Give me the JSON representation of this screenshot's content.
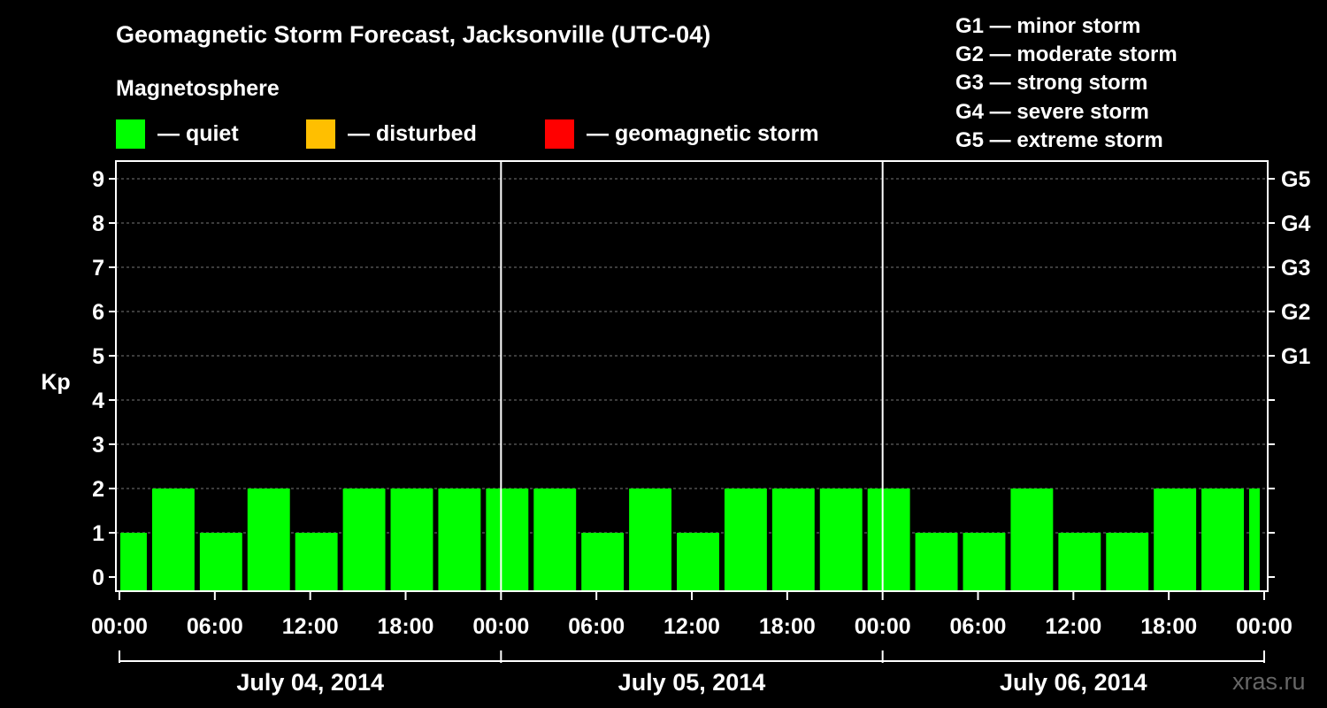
{
  "title": "Geomagnetic Storm Forecast, Jacksonville (UTC-04)",
  "subtitle": "Magnetosphere",
  "legend": [
    {
      "label": "— quiet",
      "color": "#00ff00"
    },
    {
      "label": "— disturbed",
      "color": "#ffbf00"
    },
    {
      "label": "— geomagnetic storm",
      "color": "#ff0000"
    }
  ],
  "g_legend": [
    "G1 — minor storm",
    "G2 — moderate storm",
    "G3 — strong storm",
    "G4 — severe storm",
    "G5 — extreme storm"
  ],
  "watermark": "xras.ru",
  "chart_data": {
    "type": "bar",
    "ylabel": "Kp",
    "ylim": [
      0,
      9
    ],
    "yticks": [
      "0",
      "1",
      "2",
      "3",
      "4",
      "5",
      "6",
      "7",
      "8",
      "9"
    ],
    "right_ticks": [
      {
        "kp": 5,
        "label": "G1"
      },
      {
        "kp": 6,
        "label": "G2"
      },
      {
        "kp": 7,
        "label": "G3"
      },
      {
        "kp": 8,
        "label": "G4"
      },
      {
        "kp": 9,
        "label": "G5"
      }
    ],
    "grid": true,
    "xticks": [
      "00:00",
      "06:00",
      "12:00",
      "18:00",
      "00:00",
      "06:00",
      "12:00",
      "18:00",
      "00:00",
      "06:00",
      "12:00",
      "18:00",
      "00:00"
    ],
    "days": [
      "July 04, 2014",
      "July 05, 2014",
      "July 06, 2014"
    ],
    "bar_color": "#00ff00",
    "bars": [
      {
        "start_hour": 0,
        "end_hour": 2,
        "kp": 1
      },
      {
        "start_hour": 2,
        "end_hour": 5,
        "kp": 2
      },
      {
        "start_hour": 5,
        "end_hour": 8,
        "kp": 1
      },
      {
        "start_hour": 8,
        "end_hour": 11,
        "kp": 2
      },
      {
        "start_hour": 11,
        "end_hour": 14,
        "kp": 1
      },
      {
        "start_hour": 14,
        "end_hour": 17,
        "kp": 2
      },
      {
        "start_hour": 17,
        "end_hour": 20,
        "kp": 2
      },
      {
        "start_hour": 20,
        "end_hour": 23,
        "kp": 2
      },
      {
        "start_hour": 23,
        "end_hour": 26,
        "kp": 2
      },
      {
        "start_hour": 26,
        "end_hour": 29,
        "kp": 2
      },
      {
        "start_hour": 29,
        "end_hour": 32,
        "kp": 1
      },
      {
        "start_hour": 32,
        "end_hour": 35,
        "kp": 2
      },
      {
        "start_hour": 35,
        "end_hour": 38,
        "kp": 1
      },
      {
        "start_hour": 38,
        "end_hour": 41,
        "kp": 2
      },
      {
        "start_hour": 41,
        "end_hour": 44,
        "kp": 2
      },
      {
        "start_hour": 44,
        "end_hour": 47,
        "kp": 2
      },
      {
        "start_hour": 47,
        "end_hour": 50,
        "kp": 2
      },
      {
        "start_hour": 50,
        "end_hour": 53,
        "kp": 1
      },
      {
        "start_hour": 53,
        "end_hour": 56,
        "kp": 1
      },
      {
        "start_hour": 56,
        "end_hour": 59,
        "kp": 2
      },
      {
        "start_hour": 59,
        "end_hour": 62,
        "kp": 1
      },
      {
        "start_hour": 62,
        "end_hour": 65,
        "kp": 1
      },
      {
        "start_hour": 65,
        "end_hour": 68,
        "kp": 2
      },
      {
        "start_hour": 68,
        "end_hour": 71,
        "kp": 2
      },
      {
        "start_hour": 71,
        "end_hour": 72,
        "kp": 2
      }
    ]
  }
}
